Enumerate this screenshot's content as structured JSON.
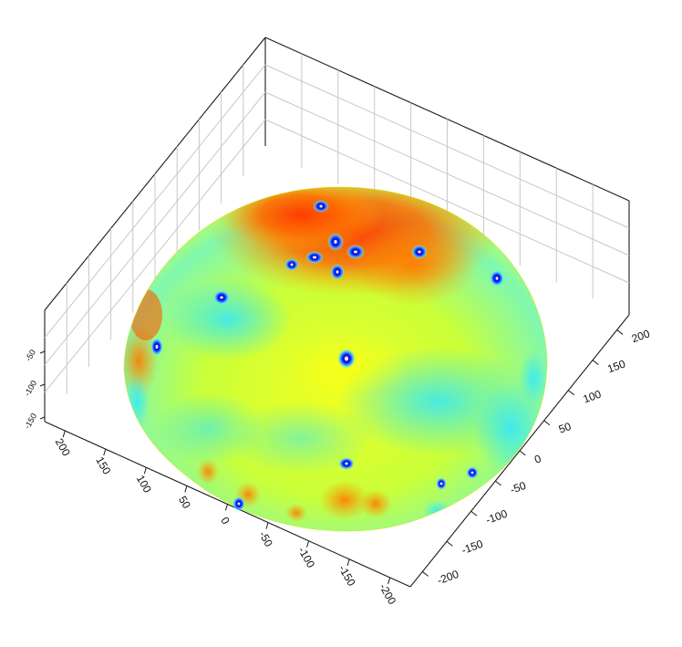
{
  "chart_data": {
    "type": "surface3d",
    "title": "",
    "xlabel": "",
    "ylabel": "",
    "zlabel": "",
    "grid": true,
    "colormap": "jet",
    "colormap_colors": [
      "#0000b0",
      "#00a0ff",
      "#00ffff",
      "#ffff00",
      "#ff8000",
      "#e01000"
    ],
    "x_ticks": [
      "200",
      "150",
      "100",
      "50",
      "0",
      "-50",
      "-100",
      "-150",
      "-200"
    ],
    "y_ticks": [
      "200",
      "150",
      "100",
      "50",
      "0",
      "-50",
      "-100",
      "-150",
      "-200"
    ],
    "z_ticks": [
      "-50",
      "-100",
      "-150"
    ],
    "xlim": [
      -230,
      230
    ],
    "ylim": [
      -230,
      230
    ],
    "zlim": [
      -170,
      0
    ],
    "surface": "hemispherical dome, radius about 230, colored by scalar value (red on the north cap, yellow and cyan toward the rim, several small dark-blue crater spots)"
  }
}
